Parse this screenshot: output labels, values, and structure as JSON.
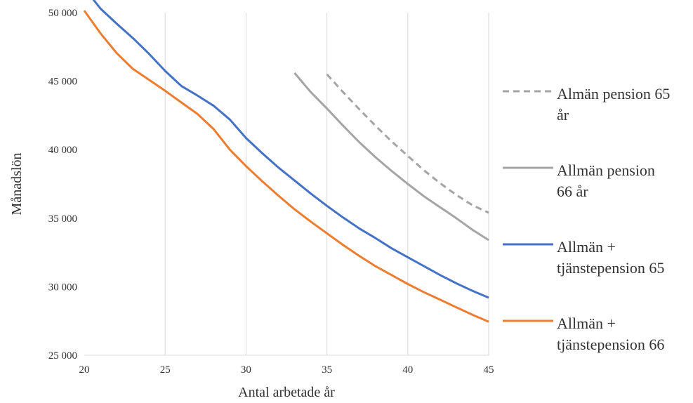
{
  "chart_data": {
    "type": "line",
    "title": "",
    "xlabel": "Antal arbetade år",
    "ylabel": "Månadslön",
    "xlim": [
      20,
      45
    ],
    "ylim": [
      25000,
      50000
    ],
    "xticks": [
      20,
      25,
      30,
      35,
      40,
      45
    ],
    "xtick_labels": [
      "20",
      "25",
      "30",
      "35",
      "40",
      "45"
    ],
    "yticks": [
      25000,
      30000,
      35000,
      40000,
      45000,
      50000
    ],
    "ytick_labels": [
      "25 000",
      "30 000",
      "35 000",
      "40 000",
      "45 000",
      "50 000"
    ],
    "grid": "vertical",
    "legend_position": "right",
    "series": [
      {
        "name": "Almän pension 65 år",
        "legend_lines": [
          "Almän pension 65",
          "år"
        ],
        "color": "#a5a5a5",
        "dashed": true,
        "x": [
          35,
          36,
          37,
          38,
          39,
          40,
          41,
          42,
          43,
          44,
          45
        ],
        "values": [
          45500,
          44200,
          42950,
          41750,
          40600,
          39550,
          38500,
          37550,
          36700,
          35950,
          35400
        ]
      },
      {
        "name": "Allmän pension 66 år",
        "legend_lines": [
          "Allmän pension",
          "66 år"
        ],
        "color": "#a5a5a5",
        "dashed": false,
        "x": [
          33,
          34,
          35,
          36,
          37,
          38,
          39,
          40,
          41,
          42,
          43,
          44,
          45
        ],
        "values": [
          45600,
          44200,
          43000,
          41750,
          40550,
          39450,
          38450,
          37500,
          36600,
          35800,
          35000,
          34150,
          33400
        ]
      },
      {
        "name": "Allmän + tjänstepension 65",
        "legend_lines": [
          "Allmän +",
          "tjänstepension 65"
        ],
        "color": "#4472c4",
        "dashed": false,
        "x": [
          20,
          21,
          22,
          23,
          24,
          25,
          26,
          27,
          28,
          29,
          30,
          31,
          32,
          33,
          34,
          35,
          36,
          37,
          38,
          39,
          40,
          41,
          42,
          43,
          44,
          45
        ],
        "values": [
          51800,
          50300,
          49200,
          48150,
          47000,
          45750,
          44650,
          43950,
          43200,
          42200,
          40850,
          39750,
          38700,
          37750,
          36800,
          35900,
          35050,
          34250,
          33550,
          32800,
          32150,
          31500,
          30850,
          30250,
          29700,
          29200
        ]
      },
      {
        "name": "Allmän + tjänstepension 66",
        "legend_lines": [
          "Allmän +",
          "tjänstepension 66"
        ],
        "color": "#ed7d31",
        "dashed": false,
        "x": [
          20,
          21,
          22,
          23,
          24,
          25,
          26,
          27,
          28,
          29,
          30,
          31,
          32,
          33,
          34,
          35,
          36,
          37,
          38,
          39,
          40,
          41,
          42,
          43,
          44,
          45
        ],
        "values": [
          50150,
          48500,
          47050,
          45900,
          45100,
          44300,
          43450,
          42600,
          41500,
          40000,
          38800,
          37700,
          36650,
          35650,
          34750,
          33900,
          33050,
          32250,
          31500,
          30850,
          30200,
          29600,
          29050,
          28500,
          27950,
          27450
        ]
      }
    ]
  }
}
